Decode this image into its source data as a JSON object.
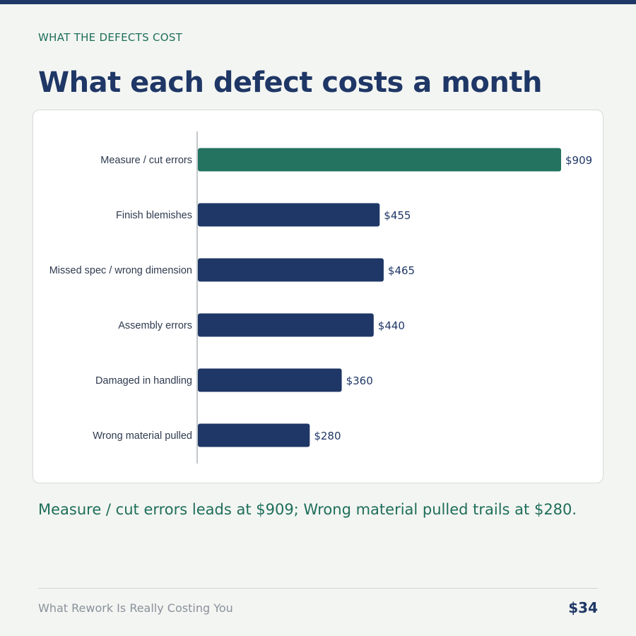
{
  "header": {
    "eyebrow": "WHAT THE DEFECTS COST",
    "title": "What each defect costs a month"
  },
  "chart_data": {
    "type": "bar",
    "orientation": "horizontal",
    "categories": [
      "Measure / cut errors",
      "Finish blemishes",
      "Missed spec / wrong dimension",
      "Assembly errors",
      "Damaged in handling",
      "Wrong material pulled"
    ],
    "values": [
      909,
      455,
      465,
      440,
      360,
      280
    ],
    "value_labels": [
      "$909",
      "$455",
      "$465",
      "$440",
      "$360",
      "$280"
    ],
    "highlight_index": 0,
    "colors": {
      "highlight": "#237360",
      "default": "#1f3766"
    },
    "xlim": [
      0,
      909
    ],
    "grid": false,
    "title": "",
    "xlabel": "",
    "ylabel": ""
  },
  "takeaway": "Measure / cut errors leads at $909; Wrong material pulled trails at $280.",
  "footer": {
    "left": "What Rework Is Really Costing You",
    "right": "$34"
  }
}
